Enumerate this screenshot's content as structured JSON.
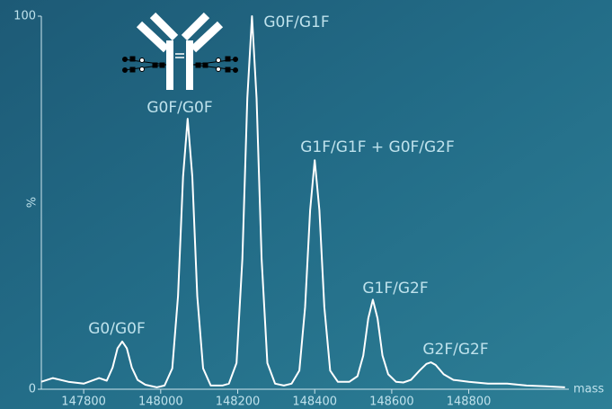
{
  "chart_data": {
    "type": "line",
    "y_label": "%",
    "x_label": "mass",
    "color": "#ffffff",
    "x": [
      147690,
      147720,
      147760,
      147800,
      147840,
      147860,
      147875,
      147888,
      147900,
      147912,
      147925,
      147940,
      147960,
      147990,
      148010,
      148030,
      148045,
      148058,
      148070,
      148082,
      148095,
      148110,
      148130,
      148160,
      148177,
      148197,
      148212,
      148225,
      148237,
      148249,
      148262,
      148277,
      148297,
      148320,
      148340,
      148360,
      148375,
      148388,
      148400,
      148412,
      148425,
      148440,
      148460,
      148490,
      148511,
      148526,
      148539,
      148551,
      148563,
      148576,
      148591,
      148611,
      148630,
      148650,
      148672,
      148690,
      148702,
      148714,
      148735,
      148760,
      148800,
      148850,
      148900,
      148950,
      149000,
      149050
    ],
    "values": [
      2,
      3,
      2,
      1.5,
      3,
      2.3,
      5.8,
      11,
      12.8,
      11,
      5.8,
      2.5,
      1.2,
      0.5,
      1,
      5.6,
      25,
      57,
      72.5,
      57,
      25,
      5.6,
      1,
      1,
      1.5,
      7,
      35,
      78,
      100,
      78,
      35,
      7,
      1.5,
      1,
      1.5,
      5,
      22,
      48,
      61.4,
      48,
      22,
      5,
      2,
      2,
      3.5,
      9,
      19,
      24,
      19,
      9,
      4,
      2,
      1.8,
      2.5,
      5,
      6.8,
      7.2,
      6.5,
      4,
      2.5,
      2,
      1.5,
      1.5,
      1,
      0.8,
      0.5
    ],
    "xlim": [
      147690,
      149060
    ],
    "ylim": [
      0,
      100
    ],
    "xticks": [
      147800,
      148000,
      148200,
      148400,
      148600,
      148800
    ],
    "yticks": [
      0,
      100
    ],
    "annotations": [
      "G0/G0F",
      "G0F/G0F",
      "G0F/G1F",
      "G1F/G1F + G0F/G2F",
      "G1F/G2F",
      "G2F/G2F"
    ]
  }
}
